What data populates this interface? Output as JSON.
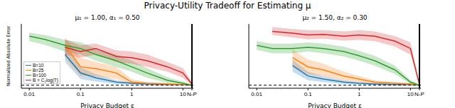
{
  "title": "Privacy-Utility Tradeoff for Estimating μ",
  "chart_data": [
    {
      "type": "line",
      "title": "μ₁ = 1.00, α₁ = 0.50",
      "xlabel": "Privacy Budget ε",
      "ylabel": "Normalized Absolute Error",
      "log": "x",
      "legend": "lower left",
      "tick_labels": "x",
      "x": [
        0.01,
        0.02,
        0.05,
        0.1,
        0.2,
        0.5,
        1,
        2,
        5,
        10,
        15
      ],
      "xlim": [
        0.007,
        16
      ],
      "xticks": [
        0.01,
        0.1,
        1,
        10,
        {
          "value": 15,
          "label": "N-P"
        }
      ],
      "ylim": [
        -0.05,
        1.0
      ],
      "annotations": [
        {
          "type": "hline",
          "y": 0,
          "line_style": "dashed",
          "color": "#000000"
        },
        {
          "type": "vline",
          "x": 15,
          "color": "#000000"
        }
      ],
      "series": [
        {
          "name": "B=10",
          "color": "#1f77b4",
          "values": [
            null,
            null,
            0.5,
            0.2,
            0.12,
            0.05,
            0.03,
            0.02,
            0.01,
            0.01,
            0.0
          ],
          "lower": [
            null,
            null,
            0.38,
            0.1,
            0.06,
            0.02,
            0.01,
            0.0,
            0.0,
            0.0,
            0.0
          ],
          "upper": [
            null,
            null,
            0.62,
            0.3,
            0.18,
            0.08,
            0.05,
            0.04,
            0.02,
            0.02,
            0.0
          ]
        },
        {
          "name": "B=25",
          "color": "#ff7f0e",
          "values": [
            null,
            null,
            0.65,
            0.3,
            0.27,
            0.2,
            0.05,
            0.03,
            0.02,
            0.01,
            0.0
          ],
          "lower": [
            null,
            null,
            0.45,
            0.15,
            0.15,
            0.1,
            0.02,
            0.01,
            0.0,
            0.0,
            0.0
          ],
          "upper": [
            null,
            null,
            0.78,
            0.45,
            0.38,
            0.3,
            0.1,
            0.05,
            0.04,
            0.02,
            0.0
          ]
        },
        {
          "name": "B=100",
          "color": "#2ca02c",
          "values": [
            0.8,
            0.75,
            0.65,
            0.6,
            0.5,
            0.4,
            0.3,
            0.2,
            0.08,
            0.03,
            0.0
          ],
          "lower": [
            0.72,
            0.66,
            0.55,
            0.5,
            0.4,
            0.3,
            0.22,
            0.12,
            0.04,
            0.01,
            0.0
          ],
          "upper": [
            0.86,
            0.82,
            0.74,
            0.7,
            0.6,
            0.5,
            0.4,
            0.28,
            0.13,
            0.06,
            0.01
          ]
        },
        {
          "name": "B = C₂log(T)",
          "color": "#d62728",
          "values": [
            null,
            null,
            0.62,
            0.55,
            0.6,
            0.47,
            0.45,
            0.4,
            0.3,
            0.2,
            0.02
          ],
          "lower": [
            null,
            null,
            0.5,
            0.45,
            0.5,
            0.38,
            0.35,
            0.3,
            0.22,
            0.12,
            0.0
          ],
          "upper": [
            null,
            null,
            0.75,
            0.65,
            0.68,
            0.57,
            0.55,
            0.5,
            0.38,
            0.28,
            0.05
          ]
        }
      ]
    },
    {
      "type": "line",
      "title": "μ₂ = 1.50, α₂ = 0.30",
      "xlabel": "Privacy Budget ε",
      "log": "x",
      "tick_labels": "x",
      "x": [
        0.01,
        0.02,
        0.05,
        0.1,
        0.2,
        0.5,
        1,
        2,
        5,
        10,
        15
      ],
      "xlim": [
        0.007,
        16
      ],
      "xticks": [
        0.01,
        0.1,
        1,
        10,
        {
          "value": 15,
          "label": "N-P"
        }
      ],
      "ylim": [
        -0.05,
        1.0
      ],
      "annotations": [
        {
          "type": "hline",
          "y": 0,
          "line_style": "dashed",
          "color": "#000000"
        },
        {
          "type": "vline",
          "x": 15,
          "color": "#000000"
        }
      ],
      "series": [
        {
          "name": "B=10",
          "color": "#1f77b4",
          "values": [
            null,
            null,
            0.32,
            0.15,
            0.1,
            0.05,
            0.03,
            0.02,
            0.01,
            0.01,
            0.0
          ],
          "lower": [
            null,
            null,
            0.22,
            0.08,
            0.05,
            0.02,
            0.01,
            0.0,
            0.0,
            0.0,
            0.0
          ],
          "upper": [
            null,
            null,
            0.42,
            0.22,
            0.15,
            0.08,
            0.05,
            0.04,
            0.02,
            0.02,
            0.0
          ]
        },
        {
          "name": "B=25",
          "color": "#ff7f0e",
          "values": [
            null,
            null,
            0.45,
            0.3,
            0.25,
            0.15,
            0.1,
            0.05,
            0.03,
            0.02,
            0.0
          ],
          "lower": [
            null,
            null,
            0.32,
            0.18,
            0.15,
            0.08,
            0.05,
            0.02,
            0.01,
            0.0,
            0.0
          ],
          "upper": [
            null,
            null,
            0.58,
            0.42,
            0.35,
            0.22,
            0.15,
            0.08,
            0.05,
            0.04,
            0.0
          ]
        },
        {
          "name": "B=100",
          "color": "#2ca02c",
          "values": [
            0.65,
            0.6,
            0.6,
            0.62,
            0.6,
            0.55,
            0.48,
            0.4,
            0.25,
            0.05,
            0.0
          ],
          "lower": [
            0.58,
            0.52,
            0.52,
            0.55,
            0.52,
            0.47,
            0.4,
            0.32,
            0.18,
            0.02,
            0.0
          ],
          "upper": [
            0.72,
            0.68,
            0.68,
            0.7,
            0.68,
            0.63,
            0.56,
            0.48,
            0.32,
            0.08,
            0.01
          ]
        },
        {
          "name": "B = C₂log(T)",
          "color": "#d62728",
          "values": [
            null,
            0.88,
            0.85,
            0.82,
            0.83,
            0.8,
            0.82,
            0.8,
            0.72,
            0.6,
            0.01
          ],
          "lower": [
            null,
            0.82,
            0.78,
            0.75,
            0.76,
            0.73,
            0.74,
            0.72,
            0.63,
            0.5,
            0.0
          ],
          "upper": [
            null,
            0.95,
            0.92,
            0.9,
            0.9,
            0.88,
            0.9,
            0.88,
            0.8,
            0.7,
            0.02
          ]
        }
      ]
    }
  ]
}
